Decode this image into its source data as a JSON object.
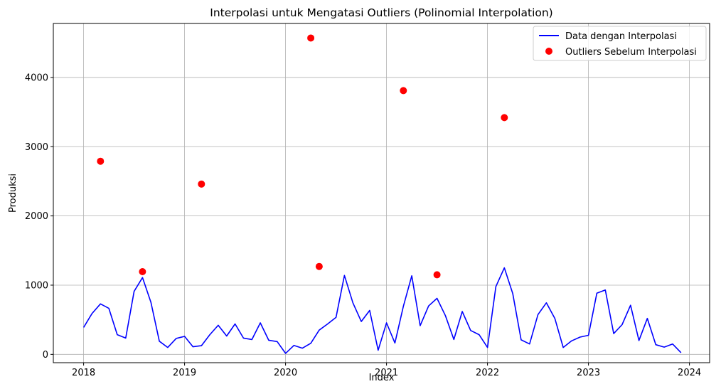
{
  "chart_data": {
    "type": "line",
    "title": "Interpolasi untuk Mengatasi Outliers (Polinomial Interpolation)",
    "xlabel": "Index",
    "ylabel": "Produksi",
    "xlim": [
      2017.7,
      2024.2
    ],
    "ylim": [
      -120,
      4780
    ],
    "x_ticks": [
      {
        "value": 2018,
        "label": "2018"
      },
      {
        "value": 2019,
        "label": "2019"
      },
      {
        "value": 2020,
        "label": "2020"
      },
      {
        "value": 2021,
        "label": "2021"
      },
      {
        "value": 2022,
        "label": "2022"
      },
      {
        "value": 2023,
        "label": "2023"
      },
      {
        "value": 2024,
        "label": "2024"
      }
    ],
    "y_ticks": [
      {
        "value": 0,
        "label": "0"
      },
      {
        "value": 1000,
        "label": "1000"
      },
      {
        "value": 2000,
        "label": "2000"
      },
      {
        "value": 3000,
        "label": "3000"
      },
      {
        "value": 4000,
        "label": "4000"
      }
    ],
    "grid": true,
    "legend_position": "top-right",
    "series": [
      {
        "name": "Data dengan Interpolasi",
        "kind": "line",
        "color": "#0000ff",
        "x": [
          2018.0,
          2018.083,
          2018.167,
          2018.25,
          2018.333,
          2018.417,
          2018.5,
          2018.583,
          2018.667,
          2018.75,
          2018.833,
          2018.917,
          2019.0,
          2019.083,
          2019.167,
          2019.25,
          2019.333,
          2019.417,
          2019.5,
          2019.583,
          2019.667,
          2019.75,
          2019.833,
          2019.917,
          2020.0,
          2020.083,
          2020.167,
          2020.25,
          2020.333,
          2020.417,
          2020.5,
          2020.583,
          2020.667,
          2020.75,
          2020.833,
          2020.917,
          2021.0,
          2021.083,
          2021.167,
          2021.25,
          2021.333,
          2021.417,
          2021.5,
          2021.583,
          2021.667,
          2021.75,
          2021.833,
          2021.917,
          2022.0,
          2022.083,
          2022.167,
          2022.25,
          2022.333,
          2022.417,
          2022.5,
          2022.583,
          2022.667,
          2022.75,
          2022.833,
          2022.917,
          2023.0,
          2023.083,
          2023.167,
          2023.25,
          2023.333,
          2023.417,
          2023.5,
          2023.583,
          2023.667,
          2023.75,
          2023.833,
          2023.917
        ],
        "y": [
          390,
          590,
          730,
          665,
          285,
          235,
          910,
          1110,
          750,
          190,
          100,
          230,
          260,
          110,
          125,
          285,
          420,
          265,
          440,
          235,
          215,
          455,
          205,
          185,
          15,
          130,
          90,
          160,
          350,
          440,
          535,
          1140,
          745,
          475,
          635,
          60,
          455,
          165,
          695,
          1135,
          415,
          700,
          810,
          560,
          215,
          620,
          345,
          285,
          100,
          980,
          1250,
          880,
          210,
          150,
          575,
          745,
          520,
          100,
          195,
          250,
          275,
          885,
          930,
          300,
          430,
          710,
          200,
          520,
          140,
          105,
          150,
          25
        ]
      },
      {
        "name": "Outliers Sebelum Interpolasi",
        "kind": "scatter",
        "color": "#ff0000",
        "x": [
          2018.167,
          2018.583,
          2019.167,
          2020.25,
          2020.333,
          2021.167,
          2021.5,
          2022.167
        ],
        "y": [
          2790,
          1195,
          2460,
          4570,
          1270,
          3810,
          1150,
          3420
        ]
      }
    ]
  }
}
